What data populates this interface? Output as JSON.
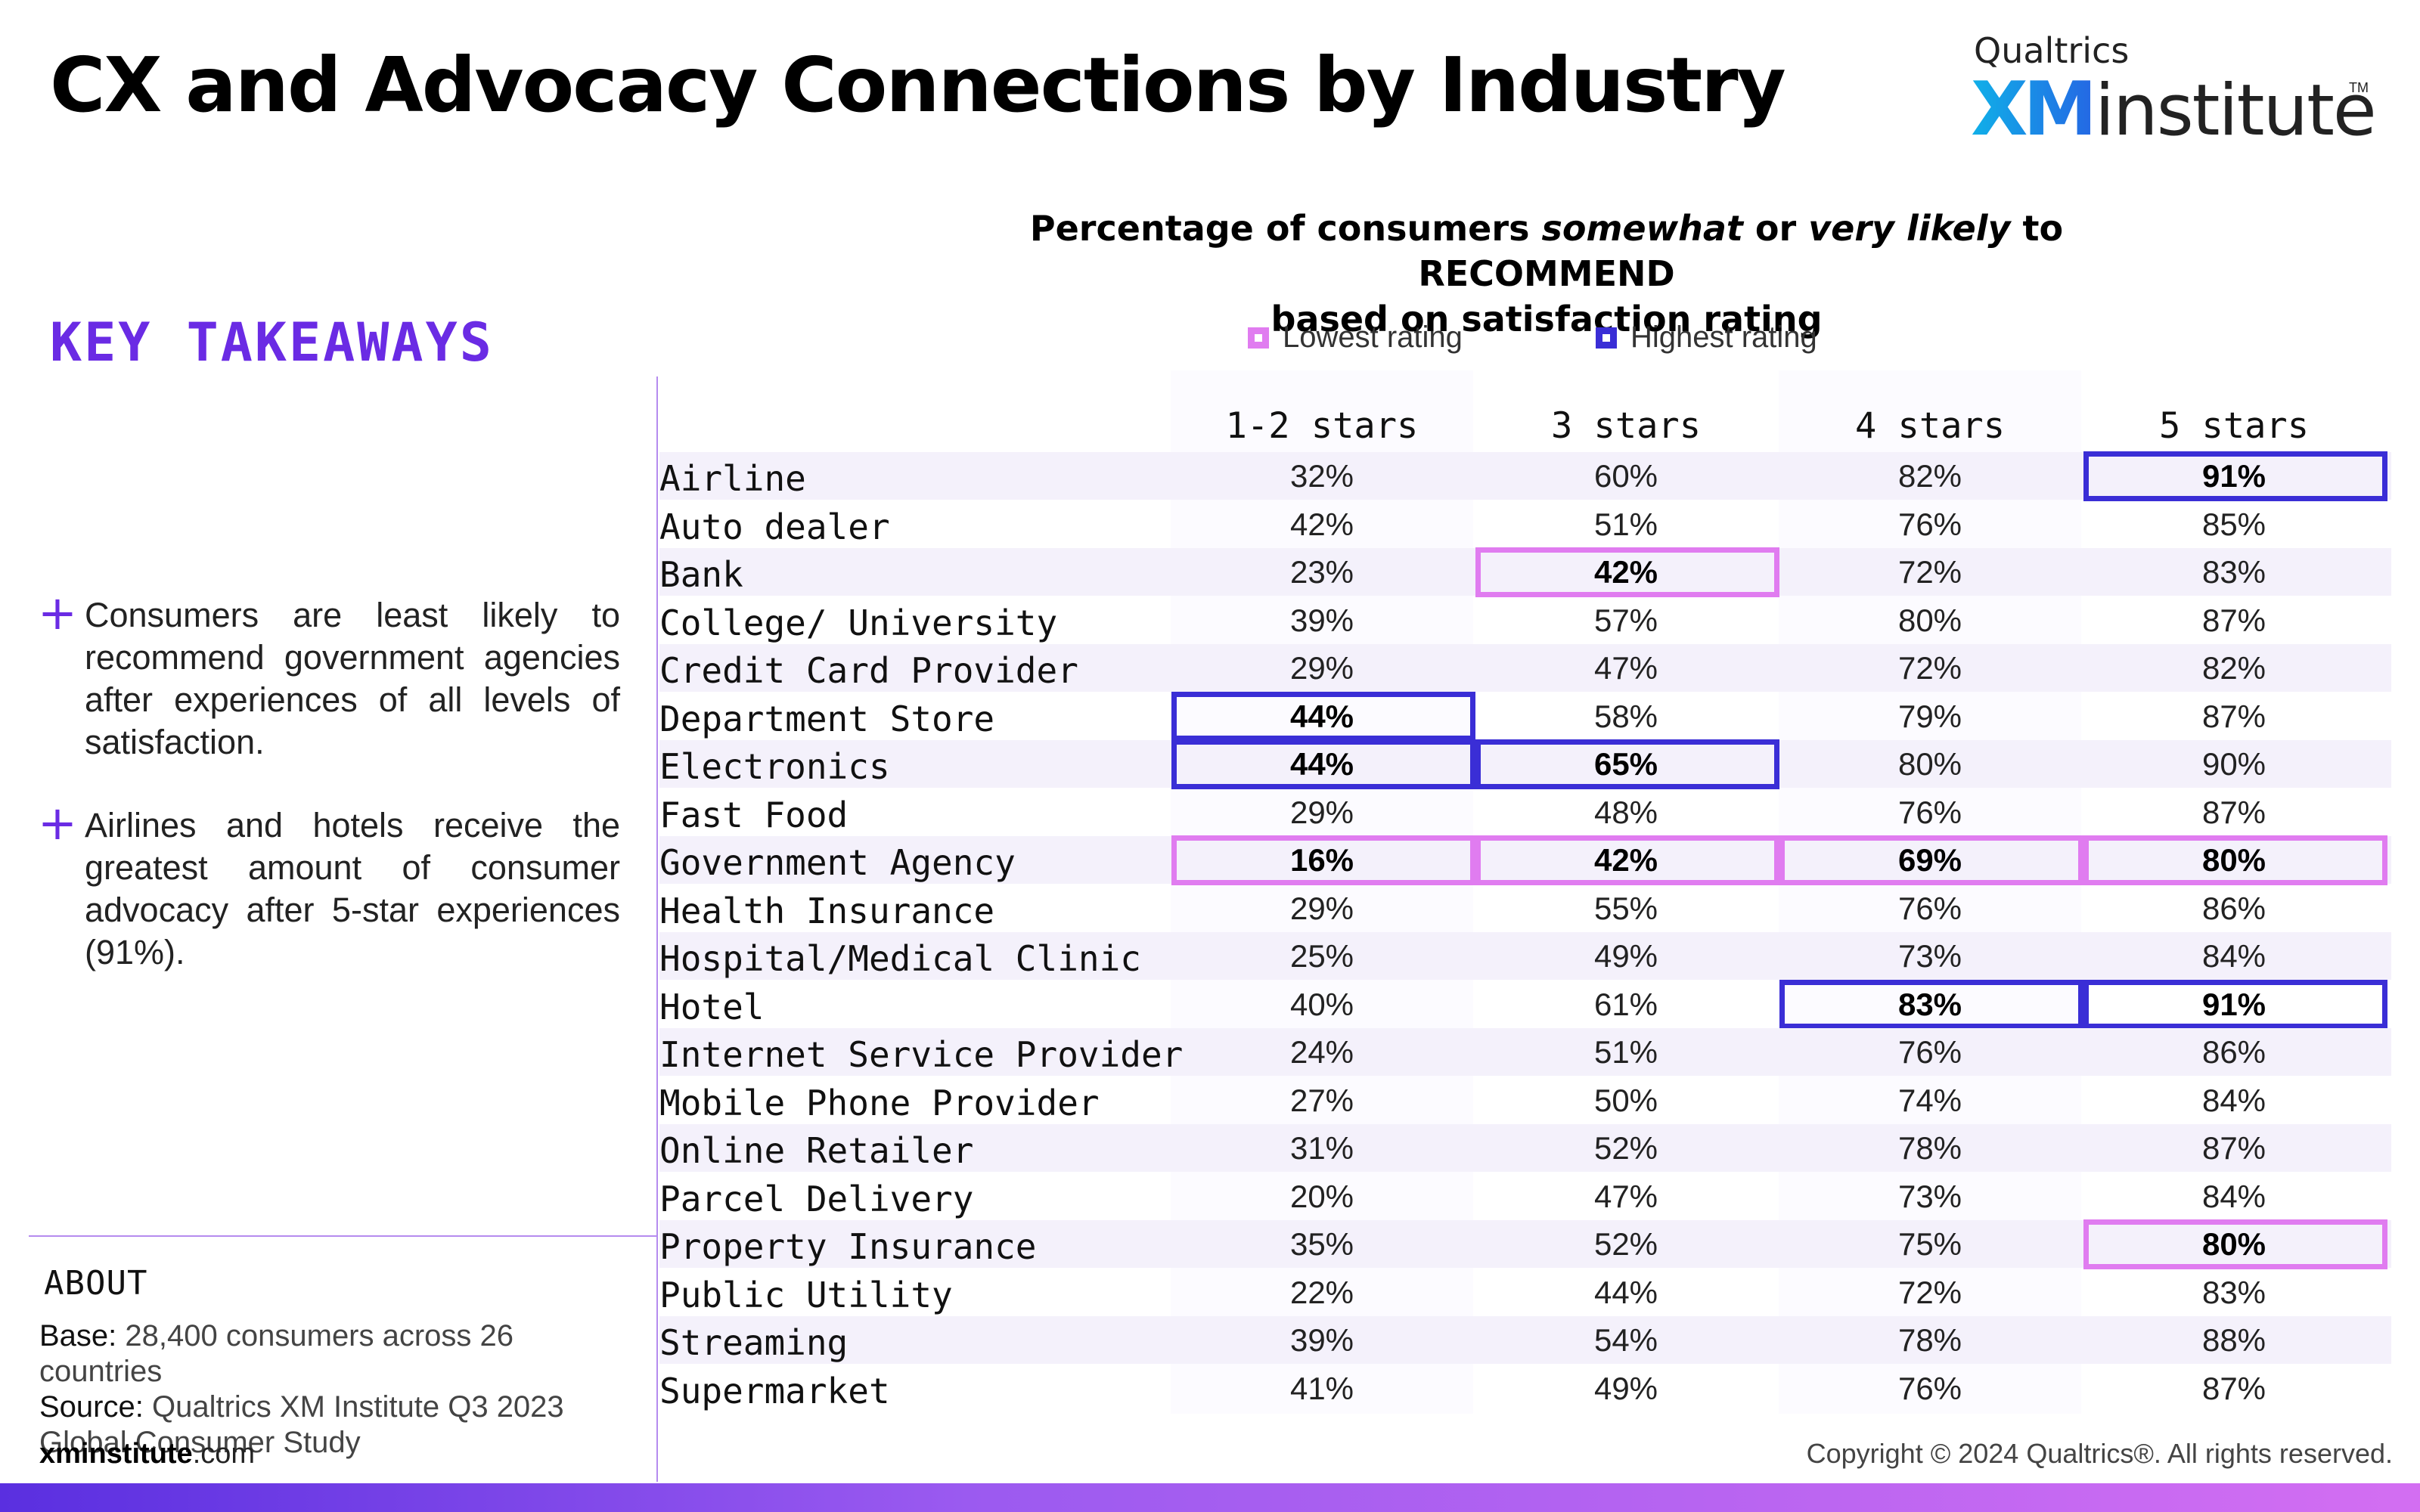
{
  "header": {
    "title": "CX and Advocacy Connections by Industry",
    "logo_small": "Qualtrics",
    "logo_xm": "XM",
    "logo_institute": "institute",
    "logo_tm": "TM"
  },
  "key_takeaways": {
    "title": "KEY TAKEAWAYS",
    "items": [
      "Consumers are least likely to recommend government agencies after experiences of all levels of satisfaction.",
      "Airlines and hotels receive the greatest amount of consumer advocacy after 5-star experiences (91%)."
    ]
  },
  "about": {
    "title": "ABOUT",
    "base_label": "Base:",
    "base_text": "28,400 consumers across 26 countries",
    "source_label": "Source:",
    "source_text": "Qualtrics XM Institute Q3 2023 Global Consumer Study",
    "site_bold": "xminstitute",
    "site_rest": ".com"
  },
  "footer": {
    "copyright": "Copyright © 2024 Qualtrics®. All rights reserved."
  },
  "colors": {
    "accent": "#6a2be4",
    "lowest": "#e07cf0",
    "highest": "#3a2ed6",
    "band": "#f4f1fb"
  },
  "chart_data": {
    "type": "table",
    "title_parts": [
      "Percentage of consumers ",
      "somewhat",
      " or ",
      "very likely",
      " to RECOMMEND",
      "based on satisfaction rating"
    ],
    "legend": [
      {
        "label": "Lowest rating",
        "color": "#e07cf0"
      },
      {
        "label": "Highest rating",
        "color": "#3a2ed6"
      }
    ],
    "columns": [
      "1-2 stars",
      "3 stars",
      "4 stars",
      "5 stars"
    ],
    "rows": [
      {
        "label": "Airline",
        "values": [
          "32%",
          "60%",
          "82%",
          "91%"
        ],
        "highlight": [
          null,
          null,
          null,
          "high"
        ]
      },
      {
        "label": "Auto dealer",
        "values": [
          "42%",
          "51%",
          "76%",
          "85%"
        ],
        "highlight": [
          null,
          null,
          null,
          null
        ]
      },
      {
        "label": "Bank",
        "values": [
          "23%",
          "42%",
          "72%",
          "83%"
        ],
        "highlight": [
          null,
          "low",
          null,
          null
        ]
      },
      {
        "label": "College/ University",
        "values": [
          "39%",
          "57%",
          "80%",
          "87%"
        ],
        "highlight": [
          null,
          null,
          null,
          null
        ]
      },
      {
        "label": "Credit Card Provider",
        "values": [
          "29%",
          "47%",
          "72%",
          "82%"
        ],
        "highlight": [
          null,
          null,
          null,
          null
        ]
      },
      {
        "label": "Department Store",
        "values": [
          "44%",
          "58%",
          "79%",
          "87%"
        ],
        "highlight": [
          "high",
          null,
          null,
          null
        ]
      },
      {
        "label": "Electronics",
        "values": [
          "44%",
          "65%",
          "80%",
          "90%"
        ],
        "highlight": [
          "high",
          "high",
          null,
          null
        ]
      },
      {
        "label": "Fast Food",
        "values": [
          "29%",
          "48%",
          "76%",
          "87%"
        ],
        "highlight": [
          null,
          null,
          null,
          null
        ]
      },
      {
        "label": "Government Agency",
        "values": [
          "16%",
          "42%",
          "69%",
          "80%"
        ],
        "highlight": [
          "low",
          "low",
          "low",
          "low"
        ]
      },
      {
        "label": "Health Insurance",
        "values": [
          "29%",
          "55%",
          "76%",
          "86%"
        ],
        "highlight": [
          null,
          null,
          null,
          null
        ]
      },
      {
        "label": "Hospital/Medical Clinic",
        "values": [
          "25%",
          "49%",
          "73%",
          "84%"
        ],
        "highlight": [
          null,
          null,
          null,
          null
        ]
      },
      {
        "label": "Hotel",
        "values": [
          "40%",
          "61%",
          "83%",
          "91%"
        ],
        "highlight": [
          null,
          null,
          "high",
          "high"
        ]
      },
      {
        "label": "Internet Service Provider",
        "values": [
          "24%",
          "51%",
          "76%",
          "86%"
        ],
        "highlight": [
          null,
          null,
          null,
          null
        ]
      },
      {
        "label": "Mobile Phone Provider",
        "values": [
          "27%",
          "50%",
          "74%",
          "84%"
        ],
        "highlight": [
          null,
          null,
          null,
          null
        ]
      },
      {
        "label": "Online Retailer",
        "values": [
          "31%",
          "52%",
          "78%",
          "87%"
        ],
        "highlight": [
          null,
          null,
          null,
          null
        ]
      },
      {
        "label": "Parcel Delivery",
        "values": [
          "20%",
          "47%",
          "73%",
          "84%"
        ],
        "highlight": [
          null,
          null,
          null,
          null
        ]
      },
      {
        "label": "Property Insurance",
        "values": [
          "35%",
          "52%",
          "75%",
          "80%"
        ],
        "highlight": [
          null,
          null,
          null,
          "low"
        ]
      },
      {
        "label": "Public Utility",
        "values": [
          "22%",
          "44%",
          "72%",
          "83%"
        ],
        "highlight": [
          null,
          null,
          null,
          null
        ]
      },
      {
        "label": "Streaming",
        "values": [
          "39%",
          "54%",
          "78%",
          "88%"
        ],
        "highlight": [
          null,
          null,
          null,
          null
        ]
      },
      {
        "label": "Supermarket",
        "values": [
          "41%",
          "49%",
          "76%",
          "87%"
        ],
        "highlight": [
          null,
          null,
          null,
          null
        ]
      }
    ]
  }
}
